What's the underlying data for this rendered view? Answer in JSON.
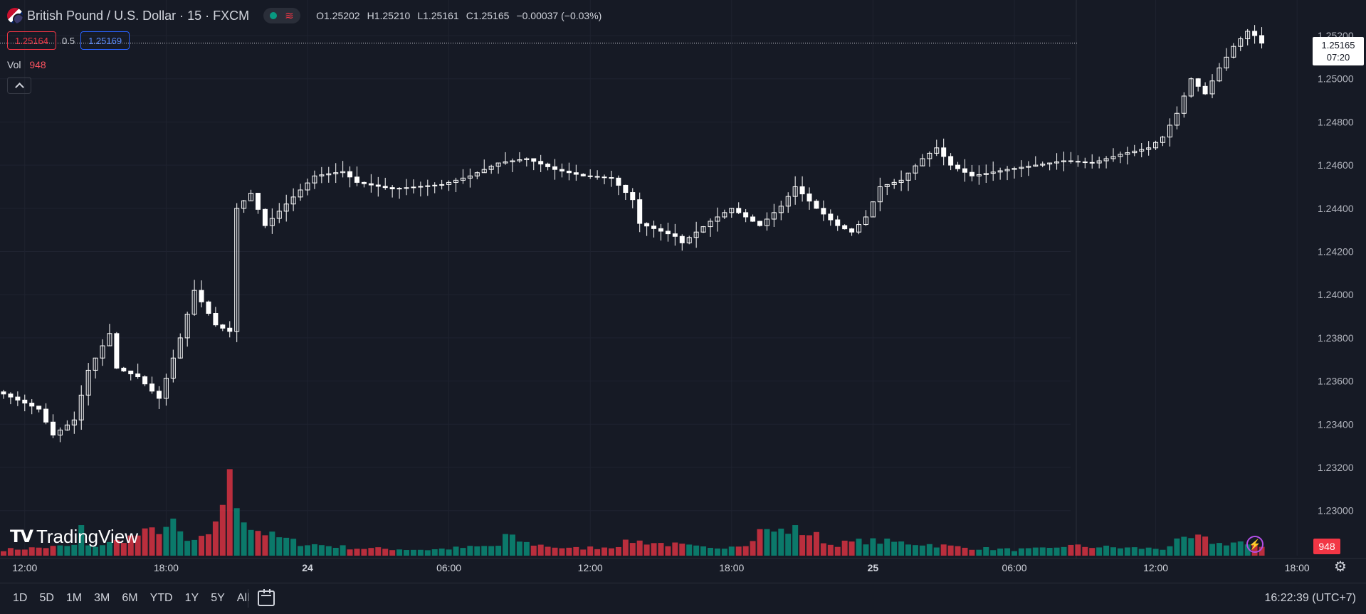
{
  "header": {
    "title": "British Pound / U.S. Dollar · 15 · FXCM",
    "ohlc": {
      "o": "O1.25202",
      "h": "H1.25210",
      "l": "L1.25161",
      "c": "C1.25165",
      "chg": "−0.00037 (−0.03%)"
    },
    "sell_price": "1.25164",
    "spread": "0.5",
    "buy_price": "1.25169"
  },
  "volume_legend": {
    "label": "Vol",
    "value": "948"
  },
  "price_axis": {
    "last_price": "1.25165",
    "countdown": "07:20",
    "volume_tag": "948"
  },
  "branding": {
    "logo_text": "TradingView"
  },
  "bottom_bar": {
    "ranges": [
      "1D",
      "5D",
      "1M",
      "3M",
      "6M",
      "YTD",
      "1Y",
      "5Y",
      "All"
    ],
    "clock": "16:22:39 (UTC+7)"
  },
  "colors": {
    "up": "#089981",
    "down": "#f23645",
    "candle": "#ffffff",
    "background": "#161a25",
    "grid": "#1f2330"
  },
  "chart_data": {
    "type": "candlestick",
    "symbol": "GBPUSD",
    "interval": "15",
    "ylim": [
      1.2288,
      1.2532
    ],
    "yticks": [
      "1.25200",
      "1.25000",
      "1.24800",
      "1.24600",
      "1.24400",
      "1.24200",
      "1.24000",
      "1.23800",
      "1.23600",
      "1.23400",
      "1.23200",
      "1.23000"
    ],
    "xticks": [
      {
        "label": "12:00",
        "bar": 3,
        "bold": false
      },
      {
        "label": "18:00",
        "bar": 23,
        "bold": false
      },
      {
        "label": "24",
        "bar": 43,
        "bold": true
      },
      {
        "label": "06:00",
        "bar": 63,
        "bold": false
      },
      {
        "label": "12:00",
        "bar": 83,
        "bold": false
      },
      {
        "label": "18:00",
        "bar": 103,
        "bold": false
      },
      {
        "label": "25",
        "bar": 123,
        "bold": true
      },
      {
        "label": "06:00",
        "bar": 143,
        "bold": false
      },
      {
        "label": "12:00",
        "bar": 163,
        "bold": false
      },
      {
        "label": "18:00",
        "bar": 183,
        "bold": false
      }
    ],
    "anchors": [
      [
        0,
        1.2354
      ],
      [
        5,
        1.2347
      ],
      [
        7,
        1.2335
      ],
      [
        10,
        1.2342
      ],
      [
        12,
        1.2365
      ],
      [
        15,
        1.2382
      ],
      [
        16,
        1.2366
      ],
      [
        19,
        1.2362
      ],
      [
        22,
        1.2352
      ],
      [
        25,
        1.238
      ],
      [
        27,
        1.2402
      ],
      [
        30,
        1.2386
      ],
      [
        32,
        1.2383
      ],
      [
        33,
        1.244
      ],
      [
        35,
        1.2447
      ],
      [
        37,
        1.2432
      ],
      [
        40,
        1.2442
      ],
      [
        44,
        1.2455
      ],
      [
        48,
        1.2457
      ],
      [
        50,
        1.2452
      ],
      [
        55,
        1.2449
      ],
      [
        62,
        1.2451
      ],
      [
        66,
        1.2455
      ],
      [
        70,
        1.2461
      ],
      [
        74,
        1.2463
      ],
      [
        78,
        1.2458
      ],
      [
        82,
        1.2455
      ],
      [
        86,
        1.2454
      ],
      [
        89,
        1.2444
      ],
      [
        90,
        1.2433
      ],
      [
        95,
        1.2427
      ],
      [
        96,
        1.2424
      ],
      [
        100,
        1.2434
      ],
      [
        103,
        1.244
      ],
      [
        107,
        1.2432
      ],
      [
        110,
        1.2441
      ],
      [
        112,
        1.245
      ],
      [
        115,
        1.244
      ],
      [
        118,
        1.2432
      ],
      [
        120,
        1.2429
      ],
      [
        122,
        1.2436
      ],
      [
        124,
        1.245
      ],
      [
        127,
        1.2453
      ],
      [
        130,
        1.2463
      ],
      [
        132,
        1.2468
      ],
      [
        134,
        1.246
      ],
      [
        137,
        1.2455
      ],
      [
        142,
        1.2458
      ],
      [
        146,
        1.246
      ],
      [
        150,
        1.2462
      ],
      [
        154,
        1.2461
      ],
      [
        158,
        1.2465
      ],
      [
        162,
        1.2468
      ],
      [
        164,
        1.2473
      ],
      [
        166,
        1.2484
      ],
      [
        168,
        1.25
      ],
      [
        170,
        1.2493
      ],
      [
        172,
        1.2505
      ],
      [
        174,
        1.2515
      ],
      [
        176,
        1.2522
      ],
      [
        177,
        1.252
      ],
      [
        178,
        1.25165
      ]
    ],
    "volume_anchors": [
      [
        0,
        12
      ],
      [
        10,
        20
      ],
      [
        11,
        58
      ],
      [
        12,
        18
      ],
      [
        15,
        25
      ],
      [
        24,
        62
      ],
      [
        26,
        28
      ],
      [
        29,
        36
      ],
      [
        32,
        150
      ],
      [
        33,
        105
      ],
      [
        35,
        58
      ],
      [
        38,
        40
      ],
      [
        42,
        25
      ],
      [
        50,
        15
      ],
      [
        60,
        12
      ],
      [
        70,
        20
      ],
      [
        71,
        40
      ],
      [
        74,
        25
      ],
      [
        80,
        14
      ],
      [
        86,
        18
      ],
      [
        89,
        30
      ],
      [
        95,
        22
      ],
      [
        100,
        14
      ],
      [
        106,
        28
      ],
      [
        107,
        62
      ],
      [
        108,
        48
      ],
      [
        112,
        52
      ],
      [
        115,
        40
      ],
      [
        117,
        22
      ],
      [
        122,
        30
      ],
      [
        125,
        28
      ],
      [
        130,
        24
      ],
      [
        136,
        16
      ],
      [
        143,
        12
      ],
      [
        148,
        14
      ],
      [
        150,
        20
      ],
      [
        158,
        16
      ],
      [
        164,
        14
      ],
      [
        166,
        28
      ],
      [
        169,
        36
      ],
      [
        172,
        24
      ],
      [
        175,
        28
      ],
      [
        176,
        20
      ],
      [
        178,
        18
      ]
    ],
    "volume_max": 160
  }
}
